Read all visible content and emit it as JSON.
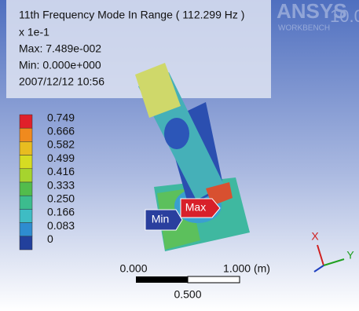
{
  "header": {
    "title": "11th Frequency Mode In Range ( 112.299 Hz )",
    "multiplier": "x 1e-1",
    "max": "Max: 7.489e-002",
    "min": "Min: 0.000e+000",
    "timestamp": "2007/12/12 10:56"
  },
  "logo": {
    "brand": "ANSYS",
    "product": "WORKBENCH",
    "version": "10.0"
  },
  "legend": {
    "entries": [
      {
        "label": "0.749",
        "color": "#e0202a"
      },
      {
        "label": "0.666",
        "color": "#f08a1e"
      },
      {
        "label": "0.582",
        "color": "#e8bc20"
      },
      {
        "label": "0.499",
        "color": "#d6dc22"
      },
      {
        "label": "0.416",
        "color": "#a6d42e"
      },
      {
        "label": "0.333",
        "color": "#52bc4c"
      },
      {
        "label": "0.250",
        "color": "#3cbc8e"
      },
      {
        "label": "0.166",
        "color": "#3ebcc4"
      },
      {
        "label": "0.083",
        "color": "#2e8cd0"
      },
      {
        "label": "0",
        "color": "#22409c"
      }
    ]
  },
  "scale": {
    "start": "0.000",
    "end": "1.000 (m)",
    "middle": "0.500"
  },
  "probes": {
    "min": "Min",
    "max": "Max"
  },
  "triad": {
    "x": "X",
    "y": "Y"
  }
}
